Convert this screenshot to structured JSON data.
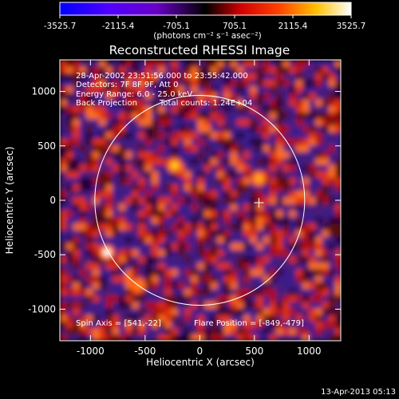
{
  "colorbar": {
    "tick_labels": [
      "-3525.7",
      "-2115.4",
      "-705.1",
      "705.1",
      "2115.4",
      "3525.7"
    ],
    "unit_label": "(photons cm⁻² s⁻¹ asec⁻²)"
  },
  "chart_data": {
    "type": "heatmap",
    "title": "Reconstructed RHESSI Image",
    "xlabel": "Heliocentric X (arcsec)",
    "ylabel": "Heliocentric Y (arcsec)",
    "xlim": [
      -1280,
      1290
    ],
    "ylim": [
      -1290,
      1290
    ],
    "x_ticks": [
      -1000,
      -500,
      0,
      500,
      1000
    ],
    "y_ticks": [
      -1000,
      -500,
      0,
      500,
      1000
    ],
    "color_range": [
      -3525.7,
      3525.7
    ],
    "colormap": [
      "#0000ff",
      "#8000ff",
      "#000000",
      "#ff0000",
      "#ff8000",
      "#ffff00",
      "#ffffff"
    ],
    "annotations": [
      "28-Apr-2002 23:51:56.000 to 23:55:42.000",
      "Detectors: 7F 8F 9F, Att 0",
      "Energy Range: 6.0 - 25.0 keV",
      "Back Projection",
      "Total counts: 1.24E+04"
    ],
    "spin_axis": "Spin Axis = [541,-22]",
    "flare_position": "Flare Position = [-849,-479]",
    "solar_disk_radius": 960,
    "crosshair": [
      541,
      -22
    ],
    "bright_sources": [
      {
        "x": -849,
        "y": -479,
        "v": 3525.7
      },
      {
        "x": -230,
        "y": 320,
        "v": 2600
      },
      {
        "x": 540,
        "y": 200,
        "v": 2000
      },
      {
        "x": -560,
        "y": -780,
        "v": 1500
      }
    ]
  },
  "footer": {
    "timestamp": "13-Apr-2013 05:13"
  }
}
